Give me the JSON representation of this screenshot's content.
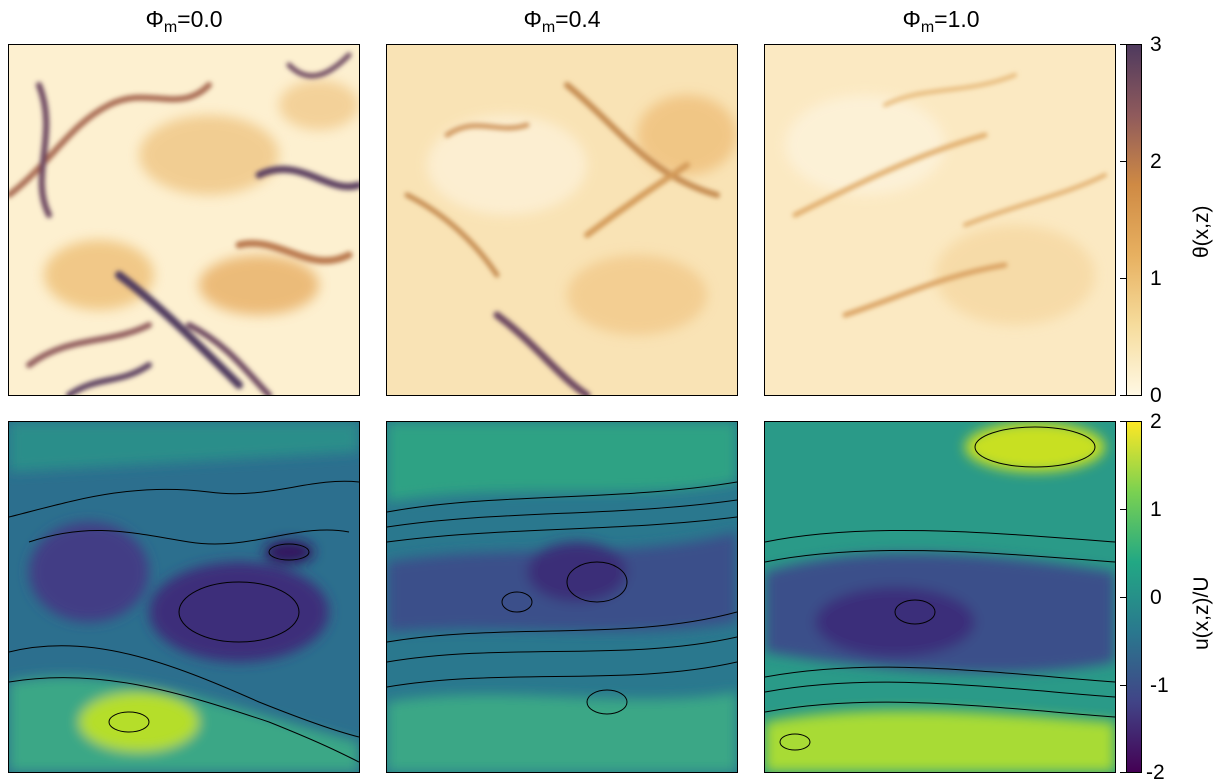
{
  "columns": [
    {
      "symbol": "Φ",
      "sub": "m",
      "value": "=0.0"
    },
    {
      "symbol": "Φ",
      "sub": "m",
      "value": "=0.4"
    },
    {
      "symbol": "Φ",
      "sub": "m",
      "value": "=1.0"
    }
  ],
  "colorbars": {
    "top": {
      "label": "θ(x,z)",
      "ticks": [
        "3",
        "2",
        "1",
        "0"
      ],
      "colors": [
        "#4f3a5e",
        "#8f5a5c",
        "#cf8a44",
        "#e7b060",
        "#f6dc9c",
        "#fff8e4"
      ]
    },
    "bottom": {
      "label": "u(x,z)/U",
      "ticks": [
        "2",
        "1",
        "0",
        "-1",
        "-2"
      ],
      "colors": [
        "#fde725",
        "#7ad151",
        "#22a884",
        "#2a788e",
        "#414487",
        "#440154"
      ]
    }
  },
  "chart_data": [
    {
      "type": "heatmap",
      "row": "top",
      "panel": "Φm=0.0",
      "field": "θ(x,z)",
      "zlim": [
        0,
        3
      ]
    },
    {
      "type": "heatmap",
      "row": "top",
      "panel": "Φm=0.4",
      "field": "θ(x,z)",
      "zlim": [
        0,
        3
      ]
    },
    {
      "type": "heatmap",
      "row": "top",
      "panel": "Φm=1.0",
      "field": "θ(x,z)",
      "zlim": [
        0,
        3
      ]
    },
    {
      "type": "heatmap",
      "row": "bottom",
      "panel": "Φm=0.0",
      "field": "u(x,z)/U",
      "zlim": [
        -2,
        2
      ],
      "contours": true
    },
    {
      "type": "heatmap",
      "row": "bottom",
      "panel": "Φm=0.4",
      "field": "u(x,z)/U",
      "zlim": [
        -2,
        2
      ],
      "contours": true
    },
    {
      "type": "heatmap",
      "row": "bottom",
      "panel": "Φm=1.0",
      "field": "u(x,z)/U",
      "zlim": [
        -2,
        2
      ],
      "contours": true
    }
  ]
}
